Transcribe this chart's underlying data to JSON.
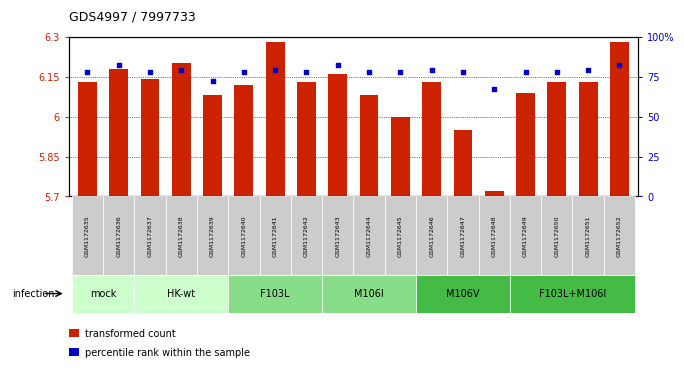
{
  "title": "GDS4997 / 7997733",
  "samples": [
    "GSM1172635",
    "GSM1172636",
    "GSM1172637",
    "GSM1172638",
    "GSM1172639",
    "GSM1172640",
    "GSM1172641",
    "GSM1172642",
    "GSM1172643",
    "GSM1172644",
    "GSM1172645",
    "GSM1172646",
    "GSM1172647",
    "GSM1172648",
    "GSM1172649",
    "GSM1172650",
    "GSM1172651",
    "GSM1172652"
  ],
  "bar_values": [
    6.13,
    6.18,
    6.14,
    6.2,
    6.08,
    6.12,
    6.28,
    6.13,
    6.16,
    6.08,
    6.0,
    6.13,
    5.95,
    5.72,
    6.09,
    6.13,
    6.13,
    6.28
  ],
  "dot_values": [
    78,
    82,
    78,
    79,
    72,
    78,
    79,
    78,
    82,
    78,
    78,
    79,
    78,
    67,
    78,
    78,
    79,
    82
  ],
  "ylim_left": [
    5.7,
    6.3
  ],
  "ylim_right": [
    0,
    100
  ],
  "yticks_left": [
    5.7,
    5.85,
    6.0,
    6.15,
    6.3
  ],
  "ytick_labels_left": [
    "5.7",
    "5.85",
    "6",
    "6.15",
    "6.3"
  ],
  "yticks_right": [
    0,
    25,
    50,
    75,
    100
  ],
  "ytick_labels_right": [
    "0",
    "25",
    "50",
    "75",
    "100%"
  ],
  "bar_color": "#cc2200",
  "dot_color": "#0000cc",
  "group_defs": [
    {
      "label": "mock",
      "start": 0,
      "end": 1,
      "color": "#ccffcc"
    },
    {
      "label": "HK-wt",
      "start": 2,
      "end": 4,
      "color": "#ccffcc"
    },
    {
      "label": "F103L",
      "start": 5,
      "end": 7,
      "color": "#88dd88"
    },
    {
      "label": "M106I",
      "start": 8,
      "end": 10,
      "color": "#88dd88"
    },
    {
      "label": "M106V",
      "start": 11,
      "end": 13,
      "color": "#44bb44"
    },
    {
      "label": "F103L+M106I",
      "start": 14,
      "end": 17,
      "color": "#44bb44"
    }
  ],
  "infection_label": "infection",
  "legend_bar_label": "transformed count",
  "legend_dot_label": "percentile rank within the sample",
  "sample_box_color": "#cccccc"
}
